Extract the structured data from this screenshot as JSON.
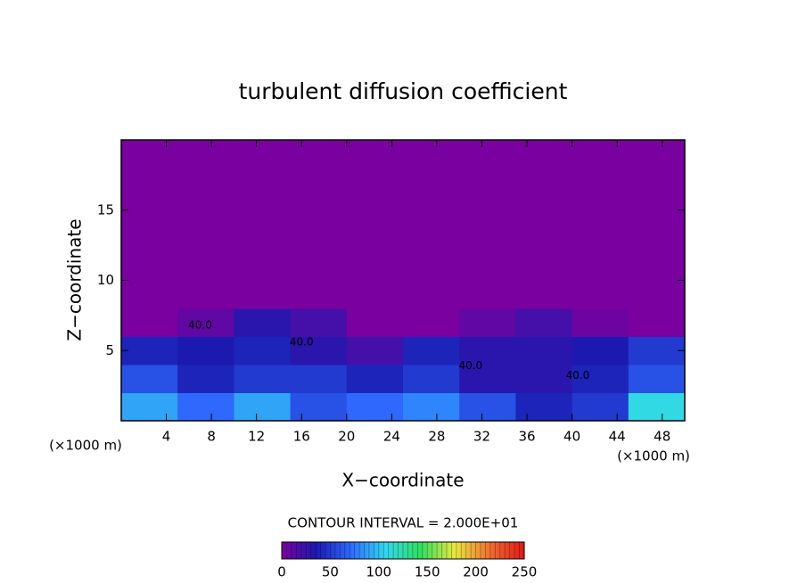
{
  "chart_data": {
    "type": "heatmap",
    "title": "turbulent diffusion coefficient",
    "xlabel": "X−coordinate",
    "ylabel": "Z−coordinate",
    "x_unit_label_left": "(×1000 m)",
    "x_unit_label_right": "(×1000 m)",
    "xlim": [
      0,
      50
    ],
    "xticks": [
      4,
      8,
      12,
      16,
      20,
      24,
      28,
      32,
      36,
      40,
      44,
      48
    ],
    "ylim": [
      0,
      20
    ],
    "yticks": [
      5,
      10,
      15
    ],
    "xbins": [
      0,
      5,
      10,
      15,
      20,
      25,
      30,
      35,
      40,
      45,
      50
    ],
    "ybins": [
      0,
      2,
      4,
      6,
      8,
      10,
      20
    ],
    "z": [
      [
        90,
        70,
        90,
        60,
        70,
        80,
        60,
        40,
        50,
        110
      ],
      [
        60,
        40,
        50,
        50,
        40,
        50,
        30,
        30,
        40,
        60
      ],
      [
        40,
        35,
        40,
        30,
        20,
        40,
        30,
        30,
        35,
        50
      ],
      [
        0,
        10,
        30,
        20,
        0,
        0,
        10,
        20,
        5,
        0
      ],
      [
        0,
        0,
        0,
        0,
        0,
        0,
        0,
        0,
        0,
        0
      ],
      [
        0,
        0,
        0,
        0,
        0,
        0,
        0,
        0,
        0,
        0
      ]
    ],
    "annotations": [
      {
        "text": "40.0",
        "x": 7.0,
        "y": 6.8
      },
      {
        "text": "40.0",
        "x": 16.0,
        "y": 5.6
      },
      {
        "text": "40.0",
        "x": 31.0,
        "y": 3.9
      },
      {
        "text": "40.0",
        "x": 40.5,
        "y": 3.2
      }
    ],
    "colorbar_label": "CONTOUR INTERVAL = 2.000E+01",
    "zlim": [
      0,
      250
    ],
    "zticks": [
      0,
      50,
      100,
      150,
      200,
      250
    ],
    "colormap": [
      "#7b00a0",
      "#1a1ab0",
      "#2f6bff",
      "#31d8ef",
      "#30e060",
      "#e8e840",
      "#f07030",
      "#e01818"
    ]
  }
}
